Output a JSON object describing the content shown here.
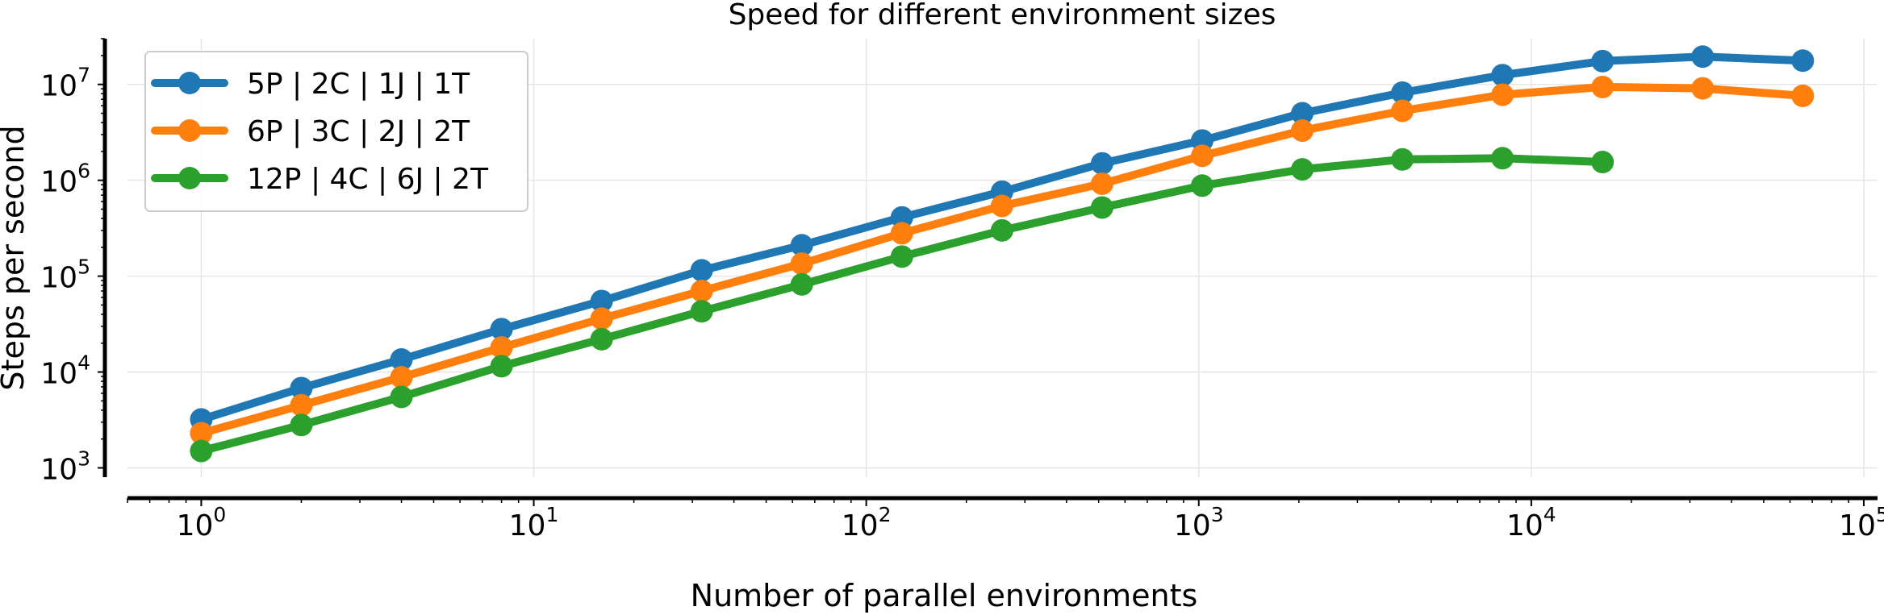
{
  "chart_data": {
    "type": "line",
    "title": "Speed for different environment sizes",
    "xlabel": "Number of parallel environments",
    "ylabel": "Steps per second",
    "xscale": "log",
    "yscale": "log",
    "xlim": [
      0.6,
      110000
    ],
    "ylim": [
      800,
      30000000
    ],
    "grid": true,
    "legend_position": "top-left",
    "x_ticks": [
      {
        "base": "10",
        "exp": "0",
        "value": 1
      },
      {
        "base": "10",
        "exp": "1",
        "value": 10
      },
      {
        "base": "10",
        "exp": "2",
        "value": 100
      },
      {
        "base": "10",
        "exp": "3",
        "value": 1000
      },
      {
        "base": "10",
        "exp": "4",
        "value": 10000
      },
      {
        "base": "10",
        "exp": "5",
        "value": 100000
      }
    ],
    "y_ticks": [
      {
        "base": "10",
        "exp": "3",
        "value": 1000
      },
      {
        "base": "10",
        "exp": "4",
        "value": 10000
      },
      {
        "base": "10",
        "exp": "5",
        "value": 100000
      },
      {
        "base": "10",
        "exp": "6",
        "value": 1000000
      },
      {
        "base": "10",
        "exp": "7",
        "value": 10000000
      }
    ],
    "series": [
      {
        "name": "5P  | 2C | 1J | 1T",
        "color": "#1f77b4",
        "x": [
          1,
          2,
          4,
          8,
          16,
          32,
          64,
          128,
          256,
          512,
          1024,
          2048,
          4096,
          8192,
          16384,
          32768,
          65536
        ],
        "y": [
          3200,
          6800,
          13500,
          28000,
          55000,
          115000,
          210000,
          410000,
          760000,
          1500000,
          2600000,
          5000000,
          8200000,
          12500000,
          17500000,
          19500000,
          17700000
        ]
      },
      {
        "name": "6P  | 3C | 2J | 2T",
        "color": "#ff7f0e",
        "x": [
          1,
          2,
          4,
          8,
          16,
          32,
          64,
          128,
          256,
          512,
          1024,
          2048,
          4096,
          8192,
          16384,
          32768,
          65536
        ],
        "y": [
          2300,
          4500,
          8800,
          18000,
          36000,
          70000,
          135000,
          280000,
          540000,
          920000,
          1800000,
          3300000,
          5300000,
          7800000,
          9400000,
          9100000,
          7600000
        ]
      },
      {
        "name": "12P | 4C | 6J | 2T",
        "color": "#2ca02c",
        "x": [
          1,
          2,
          4,
          8,
          16,
          32,
          64,
          128,
          256,
          512,
          1024,
          2048,
          4096,
          8192,
          16384
        ],
        "y": [
          1500,
          2800,
          5500,
          11500,
          22000,
          43000,
          82000,
          160000,
          300000,
          520000,
          880000,
          1300000,
          1650000,
          1700000,
          1550000
        ]
      }
    ]
  }
}
